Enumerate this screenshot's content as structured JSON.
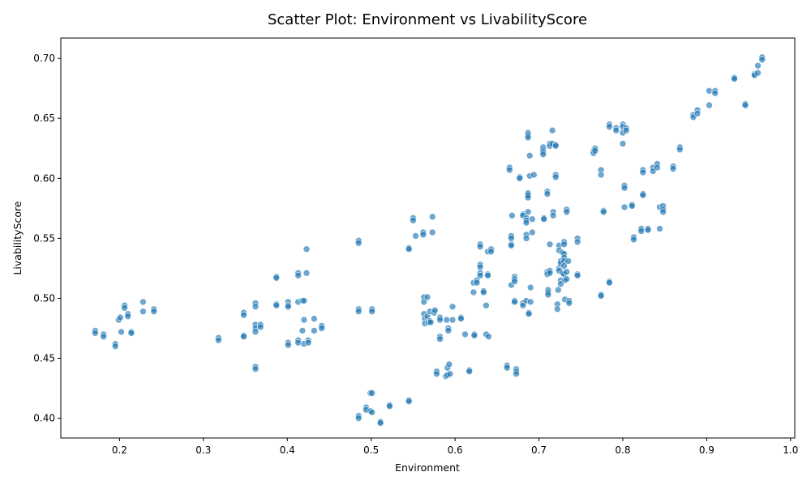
{
  "chart_data": {
    "type": "scatter",
    "title": "Scatter Plot: Environment vs LivabilityScore",
    "xlabel": "Environment",
    "ylabel": "LivabilityScore",
    "xlim": [
      0.13,
      1.005
    ],
    "ylim": [
      0.3835,
      0.717
    ],
    "xticks": [
      0.2,
      0.3,
      0.4,
      0.5,
      0.6,
      0.7,
      0.8,
      0.9,
      1.0
    ],
    "xtick_labels": [
      "0.2",
      "0.3",
      "0.4",
      "0.5",
      "0.6",
      "0.7",
      "0.8",
      "0.9",
      "1.0"
    ],
    "yticks": [
      0.4,
      0.45,
      0.5,
      0.55,
      0.6,
      0.65,
      0.7
    ],
    "ytick_labels": [
      "0.40",
      "0.45",
      "0.50",
      "0.55",
      "0.60",
      "0.65",
      "0.70"
    ],
    "grid": false,
    "legend": "none",
    "color": "#1f77b4",
    "points": [
      [
        0.171,
        0.473
      ],
      [
        0.171,
        0.471
      ],
      [
        0.181,
        0.47
      ],
      [
        0.181,
        0.468
      ],
      [
        0.195,
        0.462
      ],
      [
        0.195,
        0.46
      ],
      [
        0.199,
        0.482
      ],
      [
        0.201,
        0.484
      ],
      [
        0.202,
        0.472
      ],
      [
        0.206,
        0.494
      ],
      [
        0.206,
        0.492
      ],
      [
        0.21,
        0.487
      ],
      [
        0.21,
        0.485
      ],
      [
        0.214,
        0.472
      ],
      [
        0.214,
        0.471
      ],
      [
        0.228,
        0.497
      ],
      [
        0.228,
        0.489
      ],
      [
        0.241,
        0.491
      ],
      [
        0.241,
        0.489
      ],
      [
        0.318,
        0.467
      ],
      [
        0.318,
        0.465
      ],
      [
        0.348,
        0.488
      ],
      [
        0.348,
        0.486
      ],
      [
        0.348,
        0.469
      ],
      [
        0.348,
        0.468
      ],
      [
        0.362,
        0.496
      ],
      [
        0.362,
        0.493
      ],
      [
        0.362,
        0.478
      ],
      [
        0.362,
        0.475
      ],
      [
        0.362,
        0.472
      ],
      [
        0.362,
        0.443
      ],
      [
        0.362,
        0.441
      ],
      [
        0.368,
        0.478
      ],
      [
        0.368,
        0.476
      ],
      [
        0.387,
        0.518
      ],
      [
        0.387,
        0.517
      ],
      [
        0.387,
        0.495
      ],
      [
        0.387,
        0.494
      ],
      [
        0.401,
        0.497
      ],
      [
        0.401,
        0.494
      ],
      [
        0.401,
        0.493
      ],
      [
        0.401,
        0.463
      ],
      [
        0.401,
        0.461
      ],
      [
        0.413,
        0.521
      ],
      [
        0.413,
        0.519
      ],
      [
        0.413,
        0.497
      ],
      [
        0.413,
        0.465
      ],
      [
        0.413,
        0.463
      ],
      [
        0.418,
        0.498
      ],
      [
        0.418,
        0.473
      ],
      [
        0.42,
        0.498
      ],
      [
        0.42,
        0.482
      ],
      [
        0.42,
        0.462
      ],
      [
        0.423,
        0.541
      ],
      [
        0.423,
        0.521
      ],
      [
        0.425,
        0.465
      ],
      [
        0.425,
        0.463
      ],
      [
        0.432,
        0.483
      ],
      [
        0.432,
        0.473
      ],
      [
        0.441,
        0.477
      ],
      [
        0.441,
        0.475
      ],
      [
        0.485,
        0.548
      ],
      [
        0.485,
        0.546
      ],
      [
        0.485,
        0.491
      ],
      [
        0.485,
        0.489
      ],
      [
        0.485,
        0.402
      ],
      [
        0.485,
        0.4
      ],
      [
        0.494,
        0.409
      ],
      [
        0.494,
        0.407
      ],
      [
        0.499,
        0.421
      ],
      [
        0.499,
        0.406
      ],
      [
        0.501,
        0.491
      ],
      [
        0.501,
        0.489
      ],
      [
        0.501,
        0.421
      ],
      [
        0.501,
        0.405
      ],
      [
        0.511,
        0.397
      ],
      [
        0.511,
        0.396
      ],
      [
        0.522,
        0.411
      ],
      [
        0.522,
        0.41
      ],
      [
        0.545,
        0.542
      ],
      [
        0.545,
        0.541
      ],
      [
        0.545,
        0.415
      ],
      [
        0.545,
        0.414
      ],
      [
        0.55,
        0.567
      ],
      [
        0.55,
        0.565
      ],
      [
        0.553,
        0.552
      ],
      [
        0.562,
        0.555
      ],
      [
        0.562,
        0.553
      ],
      [
        0.563,
        0.501
      ],
      [
        0.563,
        0.497
      ],
      [
        0.563,
        0.487
      ],
      [
        0.564,
        0.483
      ],
      [
        0.564,
        0.479
      ],
      [
        0.567,
        0.501
      ],
      [
        0.567,
        0.485
      ],
      [
        0.568,
        0.48
      ],
      [
        0.57,
        0.489
      ],
      [
        0.57,
        0.481
      ],
      [
        0.571,
        0.48
      ],
      [
        0.573,
        0.568
      ],
      [
        0.573,
        0.555
      ],
      [
        0.575,
        0.488
      ],
      [
        0.576,
        0.49
      ],
      [
        0.578,
        0.439
      ],
      [
        0.578,
        0.437
      ],
      [
        0.582,
        0.484
      ],
      [
        0.582,
        0.482
      ],
      [
        0.582,
        0.468
      ],
      [
        0.582,
        0.466
      ],
      [
        0.589,
        0.435
      ],
      [
        0.59,
        0.482
      ],
      [
        0.591,
        0.442
      ],
      [
        0.591,
        0.436
      ],
      [
        0.592,
        0.475
      ],
      [
        0.592,
        0.473
      ],
      [
        0.593,
        0.445
      ],
      [
        0.594,
        0.437
      ],
      [
        0.597,
        0.493
      ],
      [
        0.597,
        0.482
      ],
      [
        0.607,
        0.484
      ],
      [
        0.607,
        0.483
      ],
      [
        0.612,
        0.47
      ],
      [
        0.617,
        0.44
      ],
      [
        0.617,
        0.439
      ],
      [
        0.622,
        0.513
      ],
      [
        0.622,
        0.505
      ],
      [
        0.623,
        0.47
      ],
      [
        0.623,
        0.469
      ],
      [
        0.626,
        0.515
      ],
      [
        0.626,
        0.513
      ],
      [
        0.63,
        0.545
      ],
      [
        0.63,
        0.543
      ],
      [
        0.63,
        0.528
      ],
      [
        0.63,
        0.526
      ],
      [
        0.63,
        0.521
      ],
      [
        0.63,
        0.519
      ],
      [
        0.634,
        0.506
      ],
      [
        0.634,
        0.505
      ],
      [
        0.637,
        0.47
      ],
      [
        0.637,
        0.494
      ],
      [
        0.639,
        0.539
      ],
      [
        0.639,
        0.52
      ],
      [
        0.639,
        0.519
      ],
      [
        0.64,
        0.468
      ],
      [
        0.643,
        0.541
      ],
      [
        0.643,
        0.539
      ],
      [
        0.662,
        0.444
      ],
      [
        0.662,
        0.442
      ],
      [
        0.665,
        0.609
      ],
      [
        0.665,
        0.607
      ],
      [
        0.667,
        0.552
      ],
      [
        0.667,
        0.55
      ],
      [
        0.667,
        0.545
      ],
      [
        0.667,
        0.544
      ],
      [
        0.667,
        0.511
      ],
      [
        0.668,
        0.569
      ],
      [
        0.671,
        0.518
      ],
      [
        0.671,
        0.516
      ],
      [
        0.671,
        0.514
      ],
      [
        0.671,
        0.498
      ],
      [
        0.671,
        0.497
      ],
      [
        0.673,
        0.441
      ],
      [
        0.673,
        0.439
      ],
      [
        0.673,
        0.437
      ],
      [
        0.677,
        0.601
      ],
      [
        0.677,
        0.6
      ],
      [
        0.681,
        0.57
      ],
      [
        0.681,
        0.569
      ],
      [
        0.681,
        0.496
      ],
      [
        0.681,
        0.494
      ],
      [
        0.685,
        0.567
      ],
      [
        0.685,
        0.565
      ],
      [
        0.685,
        0.563
      ],
      [
        0.685,
        0.553
      ],
      [
        0.685,
        0.55
      ],
      [
        0.685,
        0.498
      ],
      [
        0.687,
        0.638
      ],
      [
        0.687,
        0.636
      ],
      [
        0.687,
        0.634
      ],
      [
        0.687,
        0.588
      ],
      [
        0.687,
        0.587
      ],
      [
        0.687,
        0.586
      ],
      [
        0.687,
        0.584
      ],
      [
        0.687,
        0.572
      ],
      [
        0.688,
        0.488
      ],
      [
        0.688,
        0.487
      ],
      [
        0.689,
        0.619
      ],
      [
        0.689,
        0.602
      ],
      [
        0.69,
        0.509
      ],
      [
        0.69,
        0.497
      ],
      [
        0.692,
        0.566
      ],
      [
        0.692,
        0.555
      ],
      [
        0.694,
        0.603
      ],
      [
        0.705,
        0.626
      ],
      [
        0.705,
        0.624
      ],
      [
        0.705,
        0.622
      ],
      [
        0.705,
        0.62
      ],
      [
        0.706,
        0.567
      ],
      [
        0.706,
        0.566
      ],
      [
        0.71,
        0.589
      ],
      [
        0.71,
        0.587
      ],
      [
        0.71,
        0.522
      ],
      [
        0.71,
        0.52
      ],
      [
        0.711,
        0.507
      ],
      [
        0.711,
        0.505
      ],
      [
        0.711,
        0.503
      ],
      [
        0.713,
        0.629
      ],
      [
        0.713,
        0.627
      ],
      [
        0.713,
        0.545
      ],
      [
        0.713,
        0.523
      ],
      [
        0.713,
        0.521
      ],
      [
        0.716,
        0.64
      ],
      [
        0.716,
        0.629
      ],
      [
        0.717,
        0.572
      ],
      [
        0.717,
        0.569
      ],
      [
        0.72,
        0.628
      ],
      [
        0.72,
        0.627
      ],
      [
        0.72,
        0.603
      ],
      [
        0.72,
        0.601
      ],
      [
        0.722,
        0.495
      ],
      [
        0.722,
        0.491
      ],
      [
        0.723,
        0.507
      ],
      [
        0.724,
        0.544
      ],
      [
        0.724,
        0.54
      ],
      [
        0.724,
        0.525
      ],
      [
        0.724,
        0.523
      ],
      [
        0.726,
        0.531
      ],
      [
        0.726,
        0.529
      ],
      [
        0.726,
        0.515
      ],
      [
        0.726,
        0.512
      ],
      [
        0.728,
        0.538
      ],
      [
        0.728,
        0.521
      ],
      [
        0.73,
        0.547
      ],
      [
        0.73,
        0.545
      ],
      [
        0.73,
        0.537
      ],
      [
        0.73,
        0.534
      ],
      [
        0.73,
        0.531
      ],
      [
        0.73,
        0.527
      ],
      [
        0.73,
        0.52
      ],
      [
        0.731,
        0.515
      ],
      [
        0.731,
        0.499
      ],
      [
        0.733,
        0.574
      ],
      [
        0.733,
        0.572
      ],
      [
        0.733,
        0.522
      ],
      [
        0.733,
        0.516
      ],
      [
        0.735,
        0.531
      ],
      [
        0.736,
        0.498
      ],
      [
        0.736,
        0.496
      ],
      [
        0.746,
        0.55
      ],
      [
        0.746,
        0.547
      ],
      [
        0.746,
        0.52
      ],
      [
        0.746,
        0.519
      ],
      [
        0.765,
        0.623
      ],
      [
        0.765,
        0.621
      ],
      [
        0.767,
        0.625
      ],
      [
        0.767,
        0.623
      ],
      [
        0.774,
        0.607
      ],
      [
        0.774,
        0.603
      ],
      [
        0.774,
        0.503
      ],
      [
        0.774,
        0.502
      ],
      [
        0.777,
        0.573
      ],
      [
        0.777,
        0.572
      ],
      [
        0.784,
        0.645
      ],
      [
        0.784,
        0.643
      ],
      [
        0.784,
        0.514
      ],
      [
        0.784,
        0.513
      ],
      [
        0.792,
        0.642
      ],
      [
        0.792,
        0.64
      ],
      [
        0.8,
        0.645
      ],
      [
        0.8,
        0.643
      ],
      [
        0.8,
        0.638
      ],
      [
        0.8,
        0.629
      ],
      [
        0.802,
        0.594
      ],
      [
        0.802,
        0.592
      ],
      [
        0.802,
        0.576
      ],
      [
        0.804,
        0.642
      ],
      [
        0.804,
        0.64
      ],
      [
        0.811,
        0.578
      ],
      [
        0.811,
        0.577
      ],
      [
        0.813,
        0.551
      ],
      [
        0.813,
        0.549
      ],
      [
        0.822,
        0.558
      ],
      [
        0.822,
        0.556
      ],
      [
        0.824,
        0.607
      ],
      [
        0.824,
        0.605
      ],
      [
        0.824,
        0.587
      ],
      [
        0.824,
        0.586
      ],
      [
        0.83,
        0.558
      ],
      [
        0.83,
        0.557
      ],
      [
        0.836,
        0.609
      ],
      [
        0.836,
        0.606
      ],
      [
        0.841,
        0.612
      ],
      [
        0.841,
        0.609
      ],
      [
        0.844,
        0.576
      ],
      [
        0.844,
        0.558
      ],
      [
        0.848,
        0.577
      ],
      [
        0.848,
        0.574
      ],
      [
        0.848,
        0.572
      ],
      [
        0.86,
        0.61
      ],
      [
        0.86,
        0.608
      ],
      [
        0.868,
        0.626
      ],
      [
        0.868,
        0.624
      ],
      [
        0.884,
        0.653
      ],
      [
        0.884,
        0.651
      ],
      [
        0.889,
        0.657
      ],
      [
        0.889,
        0.654
      ],
      [
        0.903,
        0.673
      ],
      [
        0.903,
        0.661
      ],
      [
        0.91,
        0.673
      ],
      [
        0.91,
        0.671
      ],
      [
        0.933,
        0.684
      ],
      [
        0.933,
        0.683
      ],
      [
        0.946,
        0.662
      ],
      [
        0.946,
        0.661
      ],
      [
        0.957,
        0.687
      ],
      [
        0.957,
        0.686
      ],
      [
        0.961,
        0.694
      ],
      [
        0.961,
        0.688
      ],
      [
        0.966,
        0.701
      ],
      [
        0.966,
        0.699
      ]
    ]
  }
}
